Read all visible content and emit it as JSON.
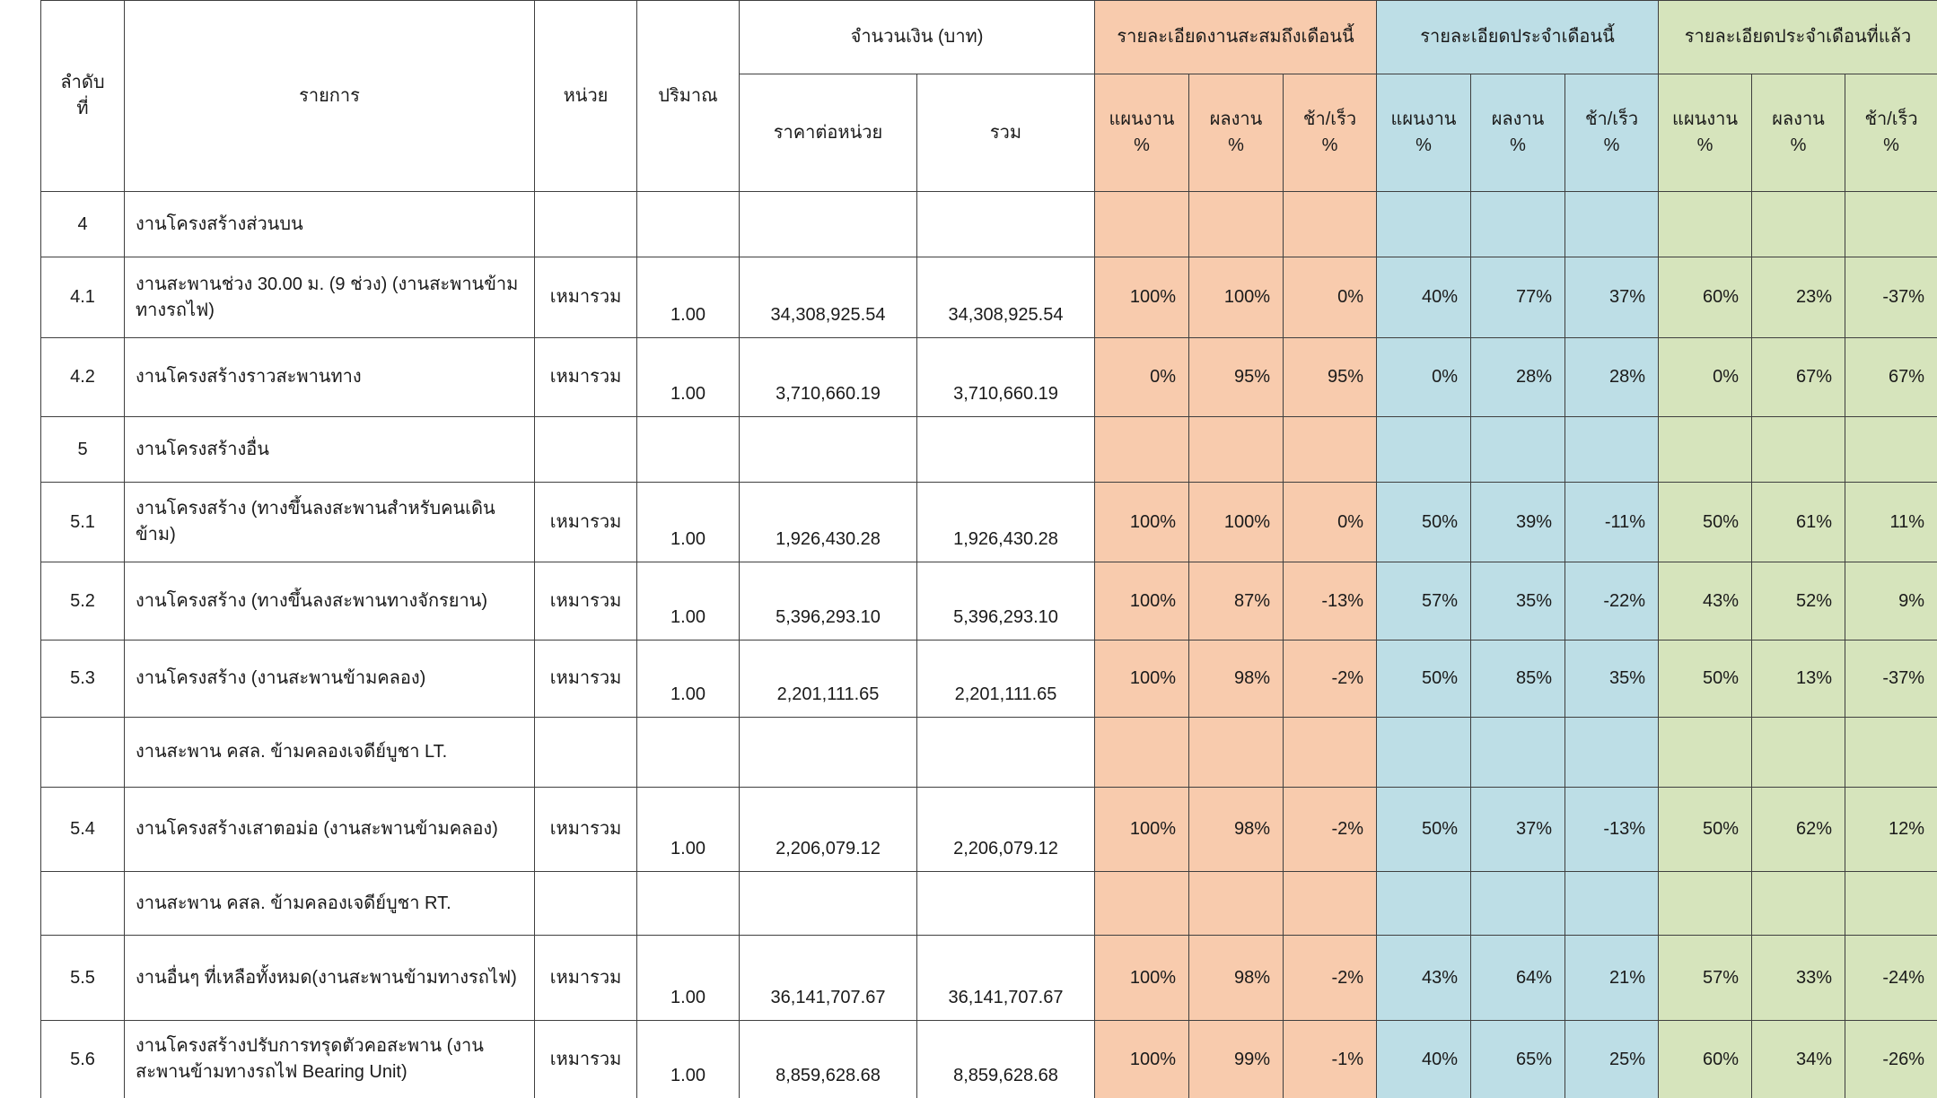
{
  "header": {
    "col_no": "ลำดับ\nที่",
    "col_item": "รายการ",
    "col_unit": "หน่วย",
    "col_qty": "ปริมาณ",
    "amount_group": "จำนวนเงิน (บาท)",
    "col_unit_price": "ราคาต่อหน่วย",
    "col_total": "รวม",
    "groups": [
      {
        "label": "รายละเอียดงานสะสมถึงเดือนนี้",
        "color": "#F8CBAD"
      },
      {
        "label": "รายละเอียดประจำเดือนนี้",
        "color": "#BDDEE6"
      },
      {
        "label": "รายละเอียดประจำเดือนที่แล้ว",
        "color": "#D6E4BC"
      }
    ],
    "sub_plan": "แผนงาน\n%",
    "sub_actual": "ผลงาน\n%",
    "sub_diff": "ช้า/เร็ว\n%"
  },
  "rows": [
    {
      "no": "4",
      "item": "งานโครงสร้างส่วนบน",
      "unit": "",
      "qty": "",
      "unit_price": "",
      "total": "",
      "cum": [
        "",
        "",
        ""
      ],
      "month": [
        "",
        "",
        ""
      ],
      "prev": [
        "",
        "",
        ""
      ]
    },
    {
      "no": "4.1",
      "item": "งานสะพานช่วง 30.00 ม. (9 ช่วง) (งานสะพานข้ามทางรถไฟ)",
      "unit": "เหมารวม",
      "qty": "1.00",
      "unit_price": "34,308,925.54",
      "total": "34,308,925.54",
      "cum": [
        "100%",
        "100%",
        "0%"
      ],
      "month": [
        "40%",
        "77%",
        "37%"
      ],
      "prev": [
        "60%",
        "23%",
        "-37%"
      ]
    },
    {
      "no": "4.2",
      "item": "งานโครงสร้างราวสะพานทาง",
      "unit": "เหมารวม",
      "qty": "1.00",
      "unit_price": "3,710,660.19",
      "total": "3,710,660.19",
      "cum": [
        "0%",
        "95%",
        "95%"
      ],
      "month": [
        "0%",
        "28%",
        "28%"
      ],
      "prev": [
        "0%",
        "67%",
        "67%"
      ]
    },
    {
      "no": "5",
      "item": "งานโครงสร้างอื่น",
      "unit": "",
      "qty": "",
      "unit_price": "",
      "total": "",
      "cum": [
        "",
        "",
        ""
      ],
      "month": [
        "",
        "",
        ""
      ],
      "prev": [
        "",
        "",
        ""
      ]
    },
    {
      "no": "5.1",
      "item": "งานโครงสร้าง (ทางขึ้นลงสะพานสำหรับคนเดินข้าม)",
      "unit": "เหมารวม",
      "qty": "1.00",
      "unit_price": "1,926,430.28",
      "total": "1,926,430.28",
      "cum": [
        "100%",
        "100%",
        "0%"
      ],
      "month": [
        "50%",
        "39%",
        "-11%"
      ],
      "prev": [
        "50%",
        "61%",
        "11%"
      ]
    },
    {
      "no": "5.2",
      "item": "งานโครงสร้าง (ทางขึ้นลงสะพานทางจักรยาน)",
      "unit": "เหมารวม",
      "qty": "1.00",
      "unit_price": "5,396,293.10",
      "total": "5,396,293.10",
      "cum": [
        "100%",
        "87%",
        "-13%"
      ],
      "month": [
        "57%",
        "35%",
        "-22%"
      ],
      "prev": [
        "43%",
        "52%",
        "9%"
      ]
    },
    {
      "no": "5.3",
      "item": "งานโครงสร้าง (งานสะพานข้ามคลอง)",
      "unit": "เหมารวม",
      "qty": "1.00",
      "unit_price": "2,201,111.65",
      "total": "2,201,111.65",
      "cum": [
        "100%",
        "98%",
        "-2%"
      ],
      "month": [
        "50%",
        "85%",
        "35%"
      ],
      "prev": [
        "50%",
        "13%",
        "-37%"
      ]
    },
    {
      "no": "",
      "item": "งานสะพาน คสล.  ข้ามคลองเจดีย์บูชา LT.",
      "unit": "",
      "qty": "",
      "unit_price": "",
      "total": "",
      "cum": [
        "",
        "",
        ""
      ],
      "month": [
        "",
        "",
        ""
      ],
      "prev": [
        "",
        "",
        ""
      ]
    },
    {
      "no": "5.4",
      "item": "งานโครงสร้างเสาตอม่อ (งานสะพานข้ามคลอง)",
      "unit": "เหมารวม",
      "qty": "1.00",
      "unit_price": "2,206,079.12",
      "total": "2,206,079.12",
      "cum": [
        "100%",
        "98%",
        "-2%"
      ],
      "month": [
        "50%",
        "37%",
        "-13%"
      ],
      "prev": [
        "50%",
        "62%",
        "12%"
      ]
    },
    {
      "no": "",
      "item": "งานสะพาน คสล.  ข้ามคลองเจดีย์บูชา RT.",
      "unit": "",
      "qty": "",
      "unit_price": "",
      "total": "",
      "cum": [
        "",
        "",
        ""
      ],
      "month": [
        "",
        "",
        ""
      ],
      "prev": [
        "",
        "",
        ""
      ]
    },
    {
      "no": "5.5",
      "item": "งานอื่นๆ ที่เหลือทั้งหมด(งานสะพานข้ามทางรถไฟ)",
      "unit": "เหมารวม",
      "qty": "1.00",
      "unit_price": "36,141,707.67",
      "total": "36,141,707.67",
      "cum": [
        "100%",
        "98%",
        "-2%"
      ],
      "month": [
        "43%",
        "64%",
        "21%"
      ],
      "prev": [
        "57%",
        "33%",
        "-24%"
      ]
    },
    {
      "no": "5.6",
      "item": "งานโครงสร้างปรับการทรุดตัวคอสะพาน (งานสะพานข้ามทางรถไฟ Bearing Unit)",
      "unit": "เหมารวม",
      "qty": "1.00",
      "unit_price": "8,859,628.68",
      "total": "8,859,628.68",
      "cum": [
        "100%",
        "99%",
        "-1%"
      ],
      "month": [
        "40%",
        "65%",
        "25%"
      ],
      "prev": [
        "60%",
        "34%",
        "-26%"
      ]
    }
  ]
}
